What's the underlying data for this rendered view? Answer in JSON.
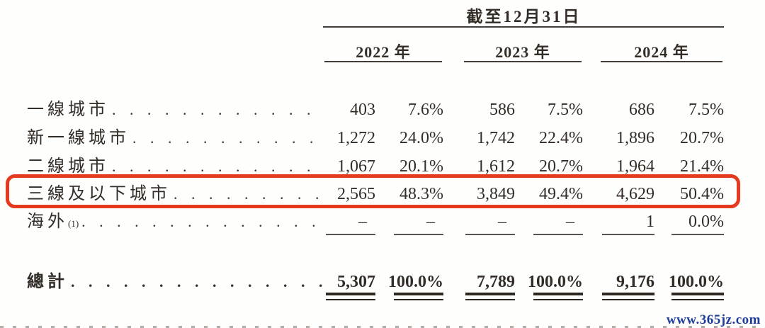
{
  "header": {
    "period": "截至12月31日",
    "years": [
      "2022 年",
      "2023 年",
      "2024 年"
    ]
  },
  "rows": [
    {
      "label": "一線城市",
      "sup": "",
      "values": [
        "403",
        "7.6%",
        "586",
        "7.5%",
        "686",
        "7.5%"
      ],
      "highlighted": false
    },
    {
      "label": "新一線城市",
      "sup": "",
      "values": [
        "1,272",
        "24.0%",
        "1,742",
        "22.4%",
        "1,896",
        "20.7%"
      ],
      "highlighted": false
    },
    {
      "label": "二線城市",
      "sup": "",
      "values": [
        "1,067",
        "20.1%",
        "1,612",
        "20.7%",
        "1,964",
        "21.4%"
      ],
      "highlighted": false
    },
    {
      "label": "三線及以下城市",
      "sup": "",
      "values": [
        "2,565",
        "48.3%",
        "3,849",
        "49.4%",
        "4,629",
        "50.4%"
      ],
      "highlighted": true
    },
    {
      "label": "海外",
      "sup": "(1)",
      "values": [
        "–",
        "–",
        "–",
        "–",
        "1",
        "0.0%"
      ],
      "highlighted": false
    }
  ],
  "total": {
    "label": "總計",
    "values": [
      "5,307",
      "100.0%",
      "7,789",
      "100.0%",
      "9,176",
      "100.0%"
    ]
  },
  "watermark": "www.365jz.com",
  "ui": {
    "dot_leader": ". . . . . . . . . . . . . . . . . . . . . . . . . . . . . . . . . . . . . . . .",
    "highlight_color": "#e53a1e"
  }
}
